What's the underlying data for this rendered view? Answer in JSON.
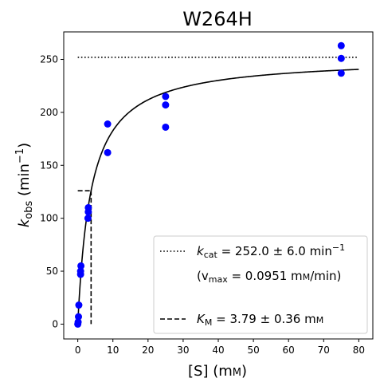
{
  "chart_data": {
    "type": "scatter",
    "title": "W264H",
    "xlabel_text": "[S] (m",
    "xlabel_unit": "M",
    "xlabel_close": ")",
    "ylabel_main": "k",
    "ylabel_sub": "obs",
    "ylabel_rest": " (min",
    "ylabel_sup": "−1",
    "ylabel_close": ")",
    "xlim": [
      -4,
      84
    ],
    "ylim": [
      -14,
      276
    ],
    "xticks": [
      0,
      10,
      20,
      30,
      40,
      50,
      60,
      70,
      80
    ],
    "yticks": [
      0,
      50,
      100,
      150,
      200,
      250
    ],
    "grid": false,
    "points": [
      {
        "x": 0.0,
        "y": 0
      },
      {
        "x": 0.1,
        "y": 2
      },
      {
        "x": 0.2,
        "y": 7
      },
      {
        "x": 0.3,
        "y": 18
      },
      {
        "x": 0.8,
        "y": 47
      },
      {
        "x": 0.8,
        "y": 50
      },
      {
        "x": 0.9,
        "y": 55
      },
      {
        "x": 2.9,
        "y": 100
      },
      {
        "x": 3.0,
        "y": 106
      },
      {
        "x": 3.0,
        "y": 110
      },
      {
        "x": 8.5,
        "y": 162
      },
      {
        "x": 8.5,
        "y": 189
      },
      {
        "x": 25,
        "y": 186
      },
      {
        "x": 25,
        "y": 207
      },
      {
        "x": 25,
        "y": 215
      },
      {
        "x": 75,
        "y": 237
      },
      {
        "x": 75,
        "y": 251
      },
      {
        "x": 75,
        "y": 263
      }
    ],
    "point_color": "#0000ff",
    "fit": {
      "vmax": 252.0,
      "km": 3.79,
      "x_range": [
        0,
        80
      ]
    },
    "kcat_line": {
      "y": 252.0,
      "x_range": [
        0,
        80
      ]
    },
    "km_marker": {
      "x": 3.79,
      "y_half": 126.0,
      "x_start": 0
    },
    "legend": {
      "position": "lower right",
      "kcat_prefix_main": "k",
      "kcat_prefix_sub": "cat",
      "kcat_value": " = 252.0 ± 6.0 min",
      "kcat_sup": "−1",
      "vmax_open": "(v",
      "vmax_sub": "max",
      "vmax_rest": " = 0.0951 m",
      "vmax_unit": "M",
      "vmax_close": "/min)",
      "km_main": "K",
      "km_sub": "M",
      "km_value": " = 3.79 ± 0.36 m",
      "km_unit": "M"
    }
  }
}
